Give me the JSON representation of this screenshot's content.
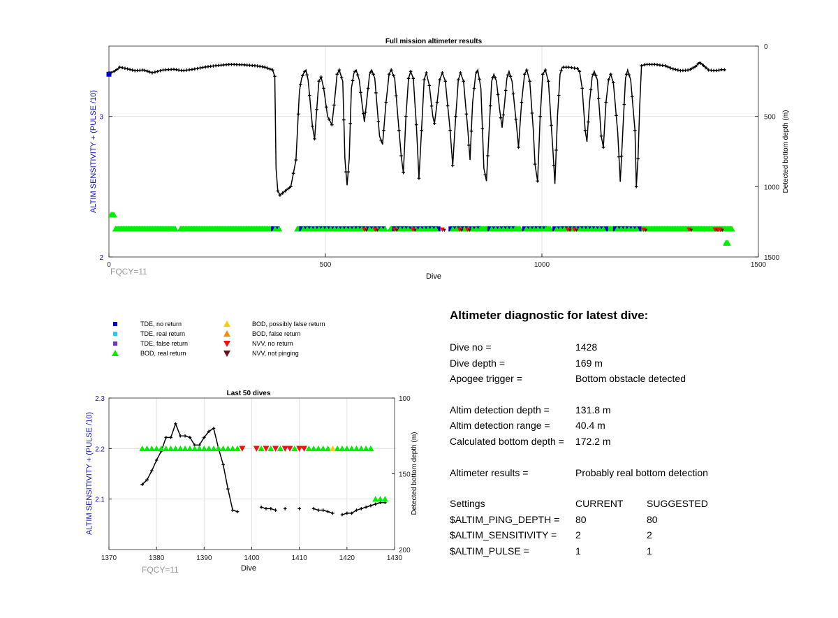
{
  "colors": {
    "tde_no_return": "#0000cc",
    "tde_real_return": "#22ccee",
    "tde_false_return": "#7733cc",
    "bod_real_return": "#00ee00",
    "bod_possibly_false": "#ffcc00",
    "bod_false_return": "#ff8800",
    "nvv_no_return": "#ee1111",
    "nvv_not_pinging": "#661111",
    "left_axis": "#1010c0",
    "note": "#999999"
  },
  "legend": [
    {
      "label": "TDE, no return",
      "icon": "blue-square-icon"
    },
    {
      "label": "TDE, real return",
      "icon": "cyan-square-icon"
    },
    {
      "label": "TDE, false return",
      "icon": "purple-square-icon"
    },
    {
      "label": "BOD, real return",
      "icon": "green-triangle-up-icon"
    },
    {
      "label": "BOD, possibly false return",
      "icon": "yellow-triangle-up-icon"
    },
    {
      "label": "BOD, false return",
      "icon": "orange-triangle-up-icon"
    },
    {
      "label": "NVV, no return",
      "icon": "red-triangle-down-icon"
    },
    {
      "label": "NVV, not pinging",
      "icon": "darkred-triangle-down-icon"
    }
  ],
  "diagnostic": {
    "title": "Altimeter diagnostic for latest dive:",
    "dive_no_label": "Dive no =",
    "dive_no": "1428",
    "dive_depth_label": "Dive depth =",
    "dive_depth": "169 m",
    "apogee_label": "Apogee trigger =",
    "apogee": "Bottom obstacle detected",
    "det_depth_label": "Altim detection depth =",
    "det_depth": "131.8 m",
    "det_range_label": "Altim detection range =",
    "det_range": "40.4 m",
    "calc_depth_label": "Calculated bottom depth =",
    "calc_depth": "172.2 m",
    "results_label": "Altimeter results =",
    "results": "Probably real bottom detection",
    "settings_header": "Settings",
    "current_header": "CURRENT",
    "suggested_header": "SUGGESTED",
    "settings": [
      {
        "name": "$ALTIM_PING_DEPTH =",
        "current": "80",
        "suggested": "80"
      },
      {
        "name": "$ALTIM_SENSITIVITY =",
        "current": "2",
        "suggested": "2"
      },
      {
        "name": "$ALTIM_PULSE =",
        "current": "1",
        "suggested": "1"
      }
    ]
  },
  "chart_data": [
    {
      "type": "scatter",
      "title": "Full mission altimeter results",
      "xlabel": "Dive",
      "ylabel": "ALTIM SENSITIVITY + (PULSE /10)",
      "y2label": "Detected bottom depth (m)",
      "note": "FQCY=11",
      "xlim": [
        0,
        1500
      ],
      "ylim": [
        2,
        3.5
      ],
      "y2lim": [
        1500,
        0
      ],
      "xticks": [
        "0",
        "500",
        "1000",
        "1500"
      ],
      "yticks": [
        "2",
        "3"
      ],
      "y2ticks": [
        "0",
        "500",
        "1000",
        "1500"
      ],
      "grid": true,
      "bottom_depth_anchors": [
        [
          0,
          190
        ],
        [
          5,
          190
        ],
        [
          15,
          175
        ],
        [
          25,
          150
        ],
        [
          40,
          160
        ],
        [
          60,
          175
        ],
        [
          80,
          170
        ],
        [
          100,
          190
        ],
        [
          125,
          170
        ],
        [
          150,
          165
        ],
        [
          170,
          175
        ],
        [
          195,
          165
        ],
        [
          220,
          150
        ],
        [
          250,
          138
        ],
        [
          280,
          130
        ],
        [
          310,
          133
        ],
        [
          340,
          140
        ],
        [
          360,
          150
        ],
        [
          378,
          170
        ],
        [
          383,
          215
        ],
        [
          386,
          870
        ],
        [
          390,
          1030
        ],
        [
          395,
          1060
        ],
        [
          420,
          1000
        ],
        [
          432,
          810
        ],
        [
          440,
          320
        ],
        [
          445,
          230
        ],
        [
          450,
          190
        ],
        [
          455,
          170
        ],
        [
          460,
          240
        ],
        [
          470,
          570
        ],
        [
          475,
          660
        ],
        [
          480,
          450
        ],
        [
          485,
          250
        ],
        [
          490,
          220
        ],
        [
          496,
          300
        ],
        [
          505,
          500
        ],
        [
          515,
          560
        ],
        [
          520,
          420
        ],
        [
          527,
          200
        ],
        [
          532,
          170
        ],
        [
          540,
          250
        ],
        [
          545,
          800
        ],
        [
          550,
          990
        ],
        [
          555,
          800
        ],
        [
          560,
          300
        ],
        [
          566,
          190
        ],
        [
          571,
          170
        ],
        [
          578,
          240
        ],
        [
          585,
          420
        ],
        [
          590,
          540
        ],
        [
          595,
          400
        ],
        [
          602,
          200
        ],
        [
          607,
          170
        ],
        [
          614,
          230
        ],
        [
          625,
          640
        ],
        [
          632,
          700
        ],
        [
          640,
          400
        ],
        [
          647,
          200
        ],
        [
          652,
          170
        ],
        [
          660,
          230
        ],
        [
          670,
          600
        ],
        [
          675,
          780
        ],
        [
          680,
          900
        ],
        [
          686,
          500
        ],
        [
          692,
          230
        ],
        [
          697,
          180
        ],
        [
          703,
          230
        ],
        [
          710,
          560
        ],
        [
          716,
          940
        ],
        [
          722,
          600
        ],
        [
          728,
          240
        ],
        [
          733,
          190
        ],
        [
          740,
          280
        ],
        [
          748,
          500
        ],
        [
          752,
          550
        ],
        [
          758,
          400
        ],
        [
          764,
          240
        ],
        [
          770,
          190
        ],
        [
          777,
          250
        ],
        [
          788,
          600
        ],
        [
          794,
          850
        ],
        [
          801,
          500
        ],
        [
          807,
          240
        ],
        [
          812,
          190
        ],
        [
          819,
          250
        ],
        [
          829,
          600
        ],
        [
          834,
          810
        ],
        [
          840,
          400
        ],
        [
          847,
          200
        ],
        [
          852,
          170
        ],
        [
          859,
          300
        ],
        [
          866,
          870
        ],
        [
          872,
          960
        ],
        [
          878,
          600
        ],
        [
          884,
          250
        ],
        [
          889,
          200
        ],
        [
          895,
          250
        ],
        [
          902,
          440
        ],
        [
          908,
          580
        ],
        [
          914,
          400
        ],
        [
          919,
          230
        ],
        [
          924,
          180
        ],
        [
          931,
          250
        ],
        [
          940,
          520
        ],
        [
          946,
          720
        ],
        [
          953,
          400
        ],
        [
          960,
          200
        ],
        [
          965,
          170
        ],
        [
          972,
          250
        ],
        [
          980,
          590
        ],
        [
          984,
          840
        ],
        [
          990,
          960
        ],
        [
          996,
          500
        ],
        [
          1002,
          200
        ],
        [
          1008,
          170
        ],
        [
          1015,
          250
        ],
        [
          1025,
          720
        ],
        [
          1030,
          980
        ],
        [
          1036,
          500
        ],
        [
          1042,
          200
        ],
        [
          1047,
          150
        ],
        [
          1062,
          150
        ],
        [
          1072,
          155
        ],
        [
          1082,
          160
        ],
        [
          1087,
          180
        ],
        [
          1093,
          300
        ],
        [
          1100,
          600
        ],
        [
          1104,
          680
        ],
        [
          1110,
          400
        ],
        [
          1116,
          220
        ],
        [
          1121,
          180
        ],
        [
          1128,
          240
        ],
        [
          1137,
          640
        ],
        [
          1142,
          720
        ],
        [
          1148,
          400
        ],
        [
          1154,
          240
        ],
        [
          1159,
          200
        ],
        [
          1165,
          260
        ],
        [
          1175,
          610
        ],
        [
          1181,
          965
        ],
        [
          1187,
          600
        ],
        [
          1193,
          230
        ],
        [
          1198,
          170
        ],
        [
          1205,
          240
        ],
        [
          1215,
          600
        ],
        [
          1218,
          1000
        ],
        [
          1222,
          800
        ],
        [
          1226,
          420
        ],
        [
          1230,
          140
        ],
        [
          1240,
          130
        ],
        [
          1260,
          130
        ],
        [
          1285,
          140
        ],
        [
          1300,
          160
        ],
        [
          1320,
          175
        ],
        [
          1340,
          170
        ],
        [
          1355,
          145
        ],
        [
          1364,
          115
        ],
        [
          1373,
          138
        ],
        [
          1385,
          170
        ],
        [
          1400,
          175
        ],
        [
          1415,
          168
        ],
        [
          1425,
          169
        ]
      ],
      "bod_real_return_y": 2.2,
      "bod_real_return_ranges": [
        [
          5,
          12,
          2.3
        ],
        [
          15,
          155,
          2.2
        ],
        [
          165,
          380,
          2.2
        ],
        [
          435,
          465,
          2.2
        ],
        [
          480,
          510,
          2.2
        ],
        [
          565,
          595,
          2.2
        ],
        [
          650,
          690,
          2.2
        ],
        [
          730,
          760,
          2.2
        ],
        [
          790,
          830,
          2.2
        ],
        [
          850,
          880,
          2.2
        ],
        [
          910,
          950,
          2.2
        ],
        [
          980,
          1020,
          2.2
        ],
        [
          1045,
          1080,
          2.2
        ],
        [
          1090,
          1120,
          2.2
        ],
        [
          1150,
          1200,
          2.2
        ],
        [
          1230,
          1440,
          2.2
        ],
        [
          1425,
          1430,
          2.1
        ]
      ],
      "tde_no_return_ranges": [
        [
          0,
          8,
          3.3
        ],
        [
          380,
          395,
          2.2
        ],
        [
          445,
          640,
          2.2
        ],
        [
          660,
          710,
          2.2
        ],
        [
          715,
          760,
          2.2
        ],
        [
          790,
          860,
          2.2
        ],
        [
          880,
          940,
          2.2
        ],
        [
          960,
          1010,
          2.2
        ],
        [
          1030,
          1150,
          2.2
        ],
        [
          1170,
          1225,
          2.2
        ]
      ],
      "nvv_no_return_points": [
        [
          590,
          2.2
        ],
        [
          615,
          2.2
        ],
        [
          660,
          2.2
        ],
        [
          702,
          2.2
        ],
        [
          770,
          2.2
        ],
        [
          810,
          2.2
        ],
        [
          828,
          2.2
        ],
        [
          1060,
          2.2
        ],
        [
          1075,
          2.2
        ],
        [
          1235,
          2.2
        ],
        [
          1340,
          2.2
        ],
        [
          1400,
          2.2
        ],
        [
          1408,
          2.2
        ],
        [
          1412,
          2.2
        ]
      ]
    },
    {
      "type": "scatter",
      "title": "Last 50 dives",
      "xlabel": "Dive",
      "ylabel": "ALTIM SENSITIVITY + (PULSE /10)",
      "y2label": "Detected bottom depth (m)",
      "note": "FQCY=11",
      "xlim": [
        1370,
        1430
      ],
      "ylim": [
        2,
        2.3
      ],
      "y2lim": [
        200,
        100
      ],
      "xticks": [
        "1370",
        "1380",
        "1390",
        "1400",
        "1410",
        "1420",
        "1430"
      ],
      "yticks": [
        "2.1",
        "2.2",
        "2.3"
      ],
      "y2ticks": [
        "100",
        "150",
        "200"
      ],
      "grid": true,
      "bottom_depth": [
        [
          1377,
          157
        ],
        [
          1378,
          154
        ],
        [
          1379,
          148
        ],
        [
          1380,
          141
        ],
        [
          1381,
          135
        ],
        [
          1382,
          126
        ],
        [
          1383,
          126
        ],
        [
          1384,
          117
        ],
        [
          1385,
          125
        ],
        [
          1386,
          125
        ],
        [
          1387,
          126
        ],
        [
          1388,
          131
        ],
        [
          1389,
          131
        ],
        [
          1390,
          126
        ],
        [
          1391,
          122
        ],
        [
          1392,
          120
        ],
        [
          1393,
          133
        ],
        [
          1394,
          144
        ],
        [
          1395,
          160
        ],
        [
          1396,
          174
        ],
        [
          1397,
          175
        ],
        [
          1402,
          172
        ],
        [
          1403,
          173
        ],
        [
          1404,
          173
        ],
        [
          1405,
          174
        ],
        [
          1407,
          173
        ],
        [
          1410,
          173
        ],
        [
          1413,
          173
        ],
        [
          1414,
          174
        ],
        [
          1415,
          174
        ],
        [
          1416,
          175
        ],
        [
          1417,
          176
        ],
        [
          1419,
          177
        ],
        [
          1420,
          176
        ],
        [
          1421,
          176
        ],
        [
          1422,
          174
        ],
        [
          1423,
          173
        ],
        [
          1424,
          172
        ],
        [
          1425,
          171
        ],
        [
          1426,
          170
        ],
        [
          1427,
          169
        ],
        [
          1428,
          169
        ]
      ],
      "bod_real_return": [
        [
          1377,
          2.2
        ],
        [
          1378,
          2.2
        ],
        [
          1379,
          2.2
        ],
        [
          1380,
          2.2
        ],
        [
          1381,
          2.2
        ],
        [
          1382,
          2.2
        ],
        [
          1383,
          2.2
        ],
        [
          1384,
          2.2
        ],
        [
          1385,
          2.2
        ],
        [
          1386,
          2.2
        ],
        [
          1387,
          2.2
        ],
        [
          1388,
          2.2
        ],
        [
          1389,
          2.2
        ],
        [
          1390,
          2.2
        ],
        [
          1391,
          2.2
        ],
        [
          1392,
          2.2
        ],
        [
          1393,
          2.2
        ],
        [
          1394,
          2.2
        ],
        [
          1395,
          2.2
        ],
        [
          1396,
          2.2
        ],
        [
          1397,
          2.2
        ],
        [
          1402,
          2.2
        ],
        [
          1404,
          2.2
        ],
        [
          1406,
          2.2
        ],
        [
          1409,
          2.2
        ],
        [
          1412,
          2.2
        ],
        [
          1413,
          2.2
        ],
        [
          1414,
          2.2
        ],
        [
          1415,
          2.2
        ],
        [
          1416,
          2.2
        ],
        [
          1418,
          2.2
        ],
        [
          1419,
          2.2
        ],
        [
          1420,
          2.2
        ],
        [
          1421,
          2.2
        ],
        [
          1422,
          2.2
        ],
        [
          1423,
          2.2
        ],
        [
          1424,
          2.2
        ],
        [
          1425,
          2.2
        ],
        [
          1426,
          2.1
        ],
        [
          1427,
          2.1
        ],
        [
          1428,
          2.1
        ]
      ],
      "bod_possibly_false": [
        [
          1417,
          2.2
        ]
      ],
      "nvv_no_return": [
        [
          1398,
          2.2
        ],
        [
          1401,
          2.2
        ],
        [
          1403,
          2.2
        ],
        [
          1405,
          2.2
        ],
        [
          1407,
          2.2
        ],
        [
          1408,
          2.2
        ],
        [
          1410,
          2.2
        ],
        [
          1411,
          2.2
        ]
      ]
    }
  ]
}
